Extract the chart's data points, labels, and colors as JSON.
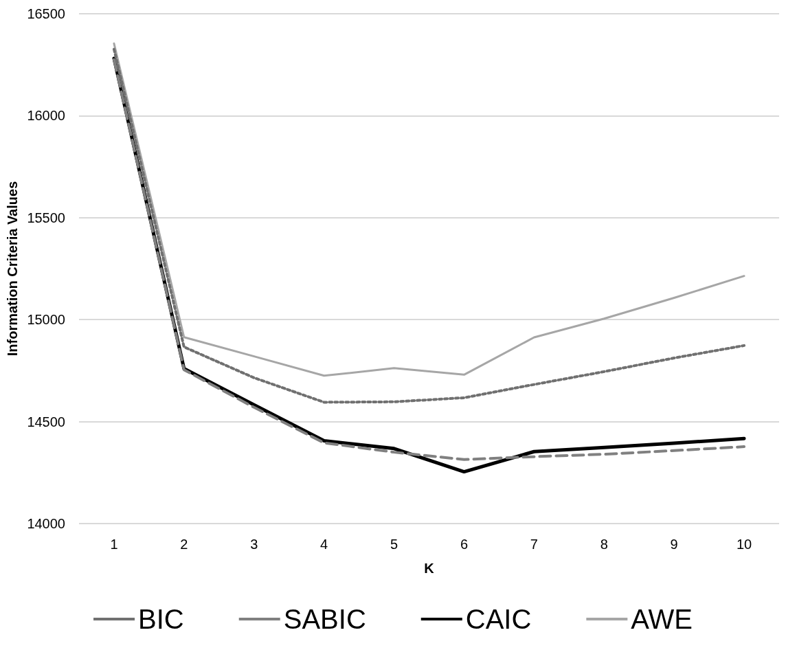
{
  "chart_data": {
    "type": "line",
    "xlabel": "K",
    "ylabel": "Information Criteria Values",
    "categories": [
      "1",
      "2",
      "3",
      "4",
      "5",
      "6",
      "7",
      "8",
      "9",
      "10"
    ],
    "series": [
      {
        "name": "BIC",
        "color": "#707070",
        "line_style": "dotted",
        "values": [
          16326,
          14866,
          14715,
          14595,
          14597,
          14617,
          14682,
          14745,
          14812,
          14873
        ]
      },
      {
        "name": "SABIC",
        "color": "#808080",
        "line_style": "dashed",
        "values": [
          16275,
          14754,
          14570,
          14396,
          14350,
          14314,
          14328,
          14340,
          14358,
          14377
        ]
      },
      {
        "name": "CAIC",
        "color": "#000000",
        "line_style": "solid",
        "values": [
          16281,
          14760,
          14582,
          14406,
          14368,
          14254,
          14353,
          14373,
          14394,
          14417
        ]
      },
      {
        "name": "AWE",
        "color": "#a6a6a6",
        "line_style": "solid",
        "values": [
          16354,
          14914,
          14820,
          14725,
          14762,
          14730,
          14913,
          15005,
          15107,
          15214
        ]
      }
    ],
    "ylim": [
      14000,
      16500
    ],
    "yticks": [
      14000,
      14500,
      15000,
      15500,
      16000,
      16500
    ],
    "grid": "y",
    "legend": "bottom",
    "marker": "none"
  }
}
